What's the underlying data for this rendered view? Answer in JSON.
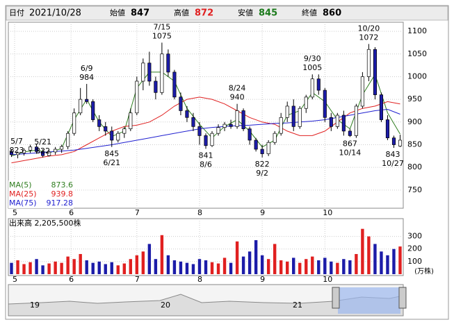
{
  "header": {
    "date_label": "日付",
    "date": "2021/10/28",
    "open_label": "始値",
    "open": 847,
    "high_label": "高値",
    "high": 872,
    "low_label": "安値",
    "low": 845,
    "close_label": "終値",
    "close": 860
  },
  "chart_data": [
    {
      "type": "candlestick",
      "x": [
        0,
        2,
        4,
        6,
        8,
        10,
        12,
        14,
        16,
        18,
        20,
        22,
        24,
        26,
        28,
        30,
        32,
        34,
        36,
        38,
        40,
        42,
        44,
        46,
        48,
        50,
        52,
        54,
        56,
        58,
        60,
        62,
        64,
        66,
        68,
        70,
        72,
        74,
        76,
        78,
        80,
        82,
        84,
        86,
        88,
        90,
        92,
        94,
        96,
        98,
        100,
        102,
        104,
        106,
        108,
        110,
        112,
        114,
        116,
        118,
        120,
        122,
        124
      ],
      "open": [
        835,
        828,
        832,
        838,
        845,
        835,
        826,
        834,
        840,
        846,
        875,
        920,
        950,
        945,
        905,
        890,
        880,
        860,
        875,
        885,
        920,
        990,
        1030,
        990,
        965,
        1050,
        1010,
        955,
        925,
        910,
        890,
        870,
        848,
        875,
        888,
        895,
        890,
        925,
        885,
        860,
        840,
        830,
        855,
        875,
        910,
        935,
        890,
        930,
        955,
        995,
        970,
        910,
        890,
        915,
        880,
        870,
        935,
        1000,
        1060,
        960,
        905,
        865,
        847
      ],
      "high": [
        840,
        835,
        842,
        850,
        852,
        840,
        838,
        845,
        850,
        880,
        930,
        975,
        984,
        950,
        915,
        900,
        890,
        880,
        890,
        930,
        1000,
        1040,
        1055,
        1000,
        1075,
        1060,
        1015,
        965,
        935,
        920,
        900,
        875,
        880,
        895,
        900,
        905,
        940,
        930,
        890,
        865,
        850,
        860,
        880,
        920,
        945,
        950,
        935,
        960,
        1005,
        1005,
        975,
        920,
        920,
        925,
        885,
        940,
        1010,
        1072,
        1065,
        965,
        915,
        870,
        872
      ],
      "low": [
        823,
        820,
        826,
        832,
        830,
        822,
        824,
        828,
        832,
        840,
        870,
        915,
        940,
        900,
        880,
        870,
        845,
        855,
        865,
        880,
        915,
        970,
        980,
        950,
        960,
        1000,
        950,
        915,
        900,
        880,
        850,
        841,
        845,
        870,
        880,
        885,
        885,
        880,
        850,
        835,
        822,
        825,
        850,
        870,
        900,
        880,
        885,
        920,
        950,
        960,
        900,
        880,
        885,
        870,
        867,
        865,
        930,
        990,
        950,
        900,
        860,
        843,
        845
      ],
      "close": [
        828,
        832,
        838,
        845,
        835,
        826,
        834,
        840,
        846,
        875,
        920,
        950,
        945,
        905,
        890,
        880,
        860,
        875,
        885,
        920,
        990,
        1030,
        990,
        965,
        1050,
        1010,
        955,
        925,
        910,
        890,
        870,
        848,
        875,
        888,
        895,
        890,
        925,
        885,
        860,
        840,
        830,
        855,
        875,
        910,
        935,
        890,
        930,
        955,
        995,
        970,
        910,
        890,
        915,
        880,
        870,
        935,
        1000,
        1060,
        960,
        905,
        865,
        850,
        860
      ],
      "colors": {
        "up": "#ffffff",
        "down": "#1c1ca8",
        "outline": "#000000"
      },
      "xlim": [
        -1,
        125
      ],
      "ylim": [
        710,
        1120
      ],
      "yticks": [
        750,
        800,
        850,
        900,
        950,
        1000,
        1050,
        1100
      ],
      "xticks": [
        {
          "value": 1,
          "label": "5"
        },
        {
          "value": 19,
          "label": "6"
        },
        {
          "value": 40,
          "label": "7"
        },
        {
          "value": 60,
          "label": "8"
        },
        {
          "value": 80,
          "label": "9"
        },
        {
          "value": 100,
          "label": "10"
        }
      ],
      "grid": true,
      "annotations": [
        {
          "x": 0,
          "date": "5/7",
          "price": 823,
          "position": "above"
        },
        {
          "x": 10,
          "date": "5/21",
          "price": 822,
          "position": "above"
        },
        {
          "x": 24,
          "date": "6/9",
          "price": 984,
          "position": "above"
        },
        {
          "x": 32,
          "date": "6/21",
          "price": 845,
          "position": "below"
        },
        {
          "x": 48,
          "date": "7/15",
          "price": 1075,
          "position": "above"
        },
        {
          "x": 62,
          "date": "8/6",
          "price": 841,
          "position": "below"
        },
        {
          "x": 72,
          "date": "8/24",
          "price": 940,
          "position": "above"
        },
        {
          "x": 80,
          "date": "9/2",
          "price": 822,
          "position": "below"
        },
        {
          "x": 96,
          "date": "9/30",
          "price": 1005,
          "position": "above"
        },
        {
          "x": 108,
          "date": "10/14",
          "price": 867,
          "position": "below"
        },
        {
          "x": 114,
          "date": "10/20",
          "price": 1072,
          "position": "above"
        },
        {
          "x": 122,
          "date": "10/27",
          "price": 843,
          "position": "below"
        }
      ],
      "ma_x": [
        0,
        4,
        8,
        12,
        16,
        20,
        24,
        28,
        32,
        36,
        40,
        44,
        48,
        52,
        56,
        60,
        64,
        68,
        72,
        76,
        80,
        84,
        88,
        92,
        96,
        100,
        104,
        108,
        112,
        116,
        120,
        124
      ],
      "ma": [
        {
          "name": "MA(5)",
          "last": 873.6,
          "color": "#2e7d1e",
          "values": [
            825,
            834,
            838,
            832,
            842,
            905,
            950,
            900,
            868,
            880,
            975,
            1010,
            1010,
            990,
            930,
            895,
            865,
            890,
            905,
            880,
            845,
            860,
            915,
            925,
            965,
            945,
            905,
            885,
            960,
            1005,
            920,
            873.6
          ]
        },
        {
          "name": "MA(25)",
          "last": 939.8,
          "color": "#e02020",
          "values": [
            810,
            815,
            820,
            825,
            828,
            835,
            850,
            865,
            880,
            890,
            893,
            900,
            915,
            935,
            950,
            955,
            950,
            940,
            925,
            910,
            900,
            895,
            880,
            870,
            870,
            880,
            900,
            920,
            930,
            935,
            945,
            939.8
          ]
        },
        {
          "name": "MA(75)",
          "last": 917.28,
          "color": "#1f1fd0",
          "values": [
            828,
            830,
            832,
            834,
            836,
            838,
            842,
            846,
            850,
            855,
            860,
            865,
            870,
            875,
            880,
            885,
            888,
            890,
            892,
            893,
            895,
            897,
            898,
            900,
            902,
            905,
            910,
            915,
            920,
            925,
            928,
            917.28
          ]
        }
      ]
    },
    {
      "type": "bar",
      "label": "出来高  2,205,500株",
      "unit": "(万株)",
      "values": [
        90,
        110,
        80,
        95,
        120,
        70,
        85,
        100,
        90,
        140,
        120,
        160,
        110,
        90,
        100,
        80,
        95,
        70,
        85,
        120,
        150,
        180,
        240,
        120,
        310,
        150,
        110,
        100,
        90,
        80,
        120,
        110,
        95,
        85,
        130,
        90,
        260,
        140,
        180,
        270,
        150,
        120,
        240,
        110,
        100,
        130,
        90,
        120,
        140,
        110,
        130,
        100,
        90,
        120,
        110,
        160,
        360,
        300,
        240,
        180,
        150,
        200,
        220
      ],
      "colors": {
        "up": "#e02020",
        "down": "#1c1ca8"
      },
      "ylim": [
        0,
        430
      ],
      "yticks": [
        100,
        200,
        300
      ]
    },
    {
      "type": "navigator",
      "labels": [
        "19",
        "20",
        "21"
      ]
    }
  ]
}
